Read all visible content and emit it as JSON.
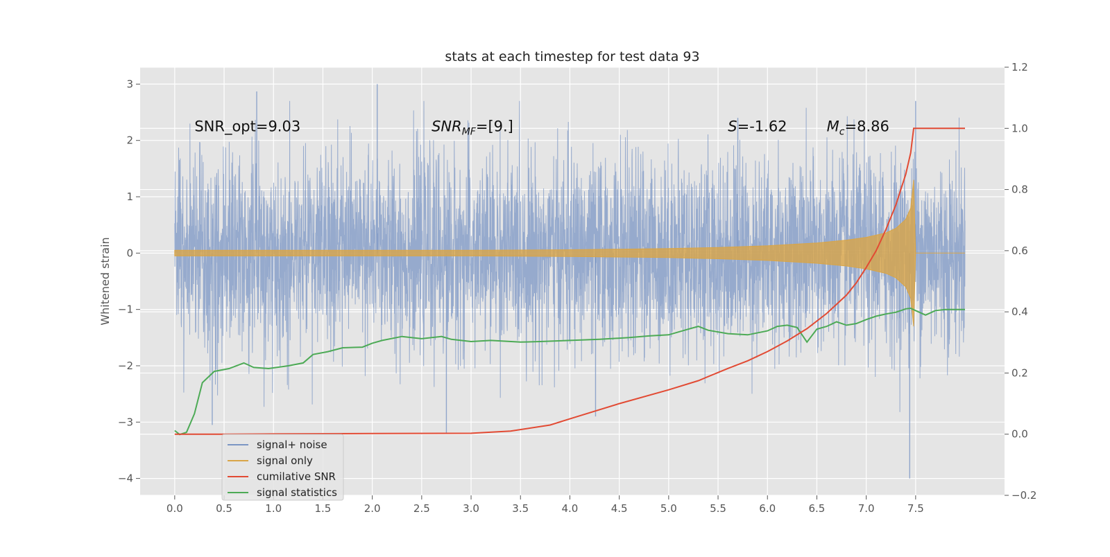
{
  "chart_data": {
    "type": "line",
    "title": "stats at each timestep for test data 93",
    "ylabel": "Whitened strain",
    "y2label": "",
    "xlim": [
      -0.35,
      8.4
    ],
    "ylim": [
      -4.3,
      3.3
    ],
    "y2lim": [
      -0.2,
      1.2
    ],
    "x_ticks": [
      0.0,
      0.5,
      1.0,
      1.5,
      2.0,
      2.5,
      3.0,
      3.5,
      4.0,
      4.5,
      5.0,
      5.5,
      6.0,
      6.5,
      7.0,
      7.5
    ],
    "x_tick_labels": [
      "0.0",
      "0.5",
      "1.0",
      "1.5",
      "2.0",
      "2.5",
      "3.0",
      "3.5",
      "4.0",
      "4.5",
      "5.0",
      "5.5",
      "6.0",
      "6.5",
      "7.0",
      "7.5"
    ],
    "y_ticks": [
      -4,
      -3,
      -2,
      -1,
      0,
      1,
      2,
      3
    ],
    "y_tick_labels": [
      "−4",
      "−3",
      "−2",
      "−1",
      "0",
      "1",
      "2",
      "3"
    ],
    "y2_ticks": [
      -0.2,
      0.0,
      0.2,
      0.4,
      0.6,
      0.8,
      1.0,
      1.2
    ],
    "y2_tick_labels": [
      "−0.2",
      "0.0",
      "0.2",
      "0.4",
      "0.6",
      "0.8",
      "1.0",
      "1.2"
    ],
    "grid": true,
    "legend_position": "lower-left",
    "annotations": [
      {
        "text": "SNR_opt=9.03",
        "x": 0.2,
        "y": 2.25
      },
      {
        "text": "SNR_MF=[9.]",
        "x": 2.6,
        "y": 2.25
      },
      {
        "text": "S=-1.62",
        "x": 5.6,
        "y": 2.25
      },
      {
        "text": "M_c=8.86",
        "x": 6.6,
        "y": 2.25
      }
    ],
    "series": [
      {
        "name": "signal+ noise",
        "axis": "left",
        "color": "#7b96c4",
        "description": "dense noisy strain, t in [0, 8.0]",
        "typical_range": [
          -1.6,
          1.7
        ],
        "extremes": [
          {
            "x": 0.38,
            "y": -3.05
          },
          {
            "x": 0.83,
            "y": 2.87
          },
          {
            "x": 2.05,
            "y": 3.0
          },
          {
            "x": 2.75,
            "y": -3.2
          },
          {
            "x": 4.26,
            "y": -2.9
          },
          {
            "x": 5.7,
            "y": 2.4
          },
          {
            "x": 7.5,
            "y": 2.7
          },
          {
            "x": 7.44,
            "y": -4.0
          }
        ]
      },
      {
        "name": "signal only",
        "axis": "left",
        "color": "#d9a547",
        "envelope_x": [
          0.0,
          1.0,
          2.0,
          3.0,
          4.0,
          5.0,
          5.5,
          6.0,
          6.5,
          6.8,
          7.0,
          7.2,
          7.3,
          7.4,
          7.45,
          7.48,
          7.5,
          8.0
        ],
        "envelope_y": [
          0.05,
          0.05,
          0.05,
          0.05,
          0.06,
          0.08,
          0.1,
          0.13,
          0.18,
          0.23,
          0.28,
          0.36,
          0.44,
          0.6,
          0.8,
          1.3,
          0.0,
          0.0
        ]
      },
      {
        "name": "cumilative SNR",
        "axis": "right",
        "color": "#e24a33",
        "x": [
          0.0,
          0.5,
          1.0,
          2.0,
          3.0,
          3.4,
          3.8,
          4.0,
          4.5,
          5.0,
          5.3,
          5.6,
          5.8,
          6.0,
          6.2,
          6.4,
          6.6,
          6.8,
          6.9,
          7.0,
          7.1,
          7.2,
          7.3,
          7.35,
          7.4,
          7.45,
          7.48,
          8.0
        ],
        "y": [
          0.0,
          0.0,
          0.001,
          0.002,
          0.003,
          0.01,
          0.03,
          0.05,
          0.1,
          0.145,
          0.175,
          0.215,
          0.24,
          0.27,
          0.305,
          0.345,
          0.395,
          0.455,
          0.495,
          0.545,
          0.6,
          0.67,
          0.75,
          0.8,
          0.85,
          0.92,
          1.0,
          1.0
        ]
      },
      {
        "name": "signal statistics",
        "axis": "left",
        "color": "#4caa55",
        "x": [
          0.0,
          0.05,
          0.12,
          0.2,
          0.28,
          0.4,
          0.55,
          0.7,
          0.8,
          0.95,
          1.15,
          1.3,
          1.4,
          1.55,
          1.7,
          1.9,
          2.0,
          2.1,
          2.3,
          2.5,
          2.7,
          2.8,
          3.0,
          3.2,
          3.5,
          3.7,
          4.0,
          4.3,
          4.6,
          4.8,
          5.0,
          5.2,
          5.3,
          5.4,
          5.6,
          5.8,
          6.0,
          6.1,
          6.2,
          6.3,
          6.4,
          6.5,
          6.6,
          6.7,
          6.8,
          6.9,
          7.0,
          7.1,
          7.2,
          7.3,
          7.4,
          7.45,
          7.5,
          7.6,
          7.7,
          7.8,
          7.9,
          8.0
        ],
        "y": [
          -3.15,
          -3.22,
          -3.18,
          -2.85,
          -2.3,
          -2.1,
          -2.05,
          -1.95,
          -2.03,
          -2.05,
          -2.0,
          -1.95,
          -1.8,
          -1.75,
          -1.68,
          -1.67,
          -1.6,
          -1.55,
          -1.48,
          -1.52,
          -1.48,
          -1.53,
          -1.57,
          -1.55,
          -1.58,
          -1.57,
          -1.55,
          -1.53,
          -1.5,
          -1.47,
          -1.45,
          -1.35,
          -1.3,
          -1.37,
          -1.43,
          -1.45,
          -1.38,
          -1.3,
          -1.28,
          -1.32,
          -1.58,
          -1.35,
          -1.3,
          -1.22,
          -1.28,
          -1.25,
          -1.18,
          -1.12,
          -1.08,
          -1.05,
          -0.99,
          -0.98,
          -1.02,
          -1.1,
          -1.02,
          -1.0,
          -1.0,
          -1.0
        ]
      }
    ]
  }
}
